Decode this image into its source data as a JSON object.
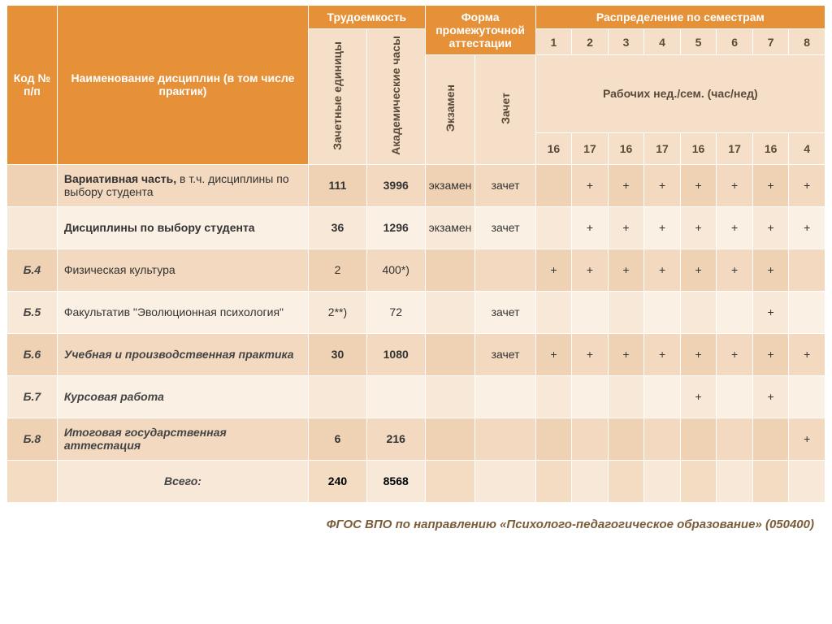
{
  "colors": {
    "header_bg": "#e69138",
    "sub_bg": "#f6dfc8",
    "stripe_even": "#f3d9bf",
    "stripe_odd": "#fbf0e4",
    "text_header": "#ffffff",
    "text_body": "#333333",
    "footer": "#7a5c3a",
    "border": "#ffffff"
  },
  "typography": {
    "font_family": "Arial, sans-serif",
    "header_fontsize": 14,
    "body_fontsize": 14,
    "footer_fontsize": 15
  },
  "header": {
    "code": "Код № п/п",
    "name": "Наименование дисциплин (в том числе практик)",
    "labor": "Трудоемкость",
    "form": "Форма промежуточной аттестации",
    "distribution": "Распределение по семестрам",
    "credit_units": "Зачетные единицы",
    "academic_hours": "Академические часы",
    "exam": "Экзамен",
    "zachet": "Зачет",
    "semesters": [
      "1",
      "2",
      "3",
      "4",
      "5",
      "6",
      "7",
      "8"
    ],
    "weeks_label": "Рабочих нед./сем. (час/нед)",
    "weeks": [
      "16",
      "17",
      "16",
      "17",
      "16",
      "17",
      "16",
      "4"
    ]
  },
  "rows": [
    {
      "code": "",
      "name_bold": "Вариативная часть,",
      "name_rest": " в т.ч. дисциплины по выбору студента",
      "name_style": "bold-partial",
      "units": "111",
      "hours": "3996",
      "exam": "экзамен",
      "zachet": "зачет",
      "sem": [
        "",
        "+",
        "+",
        "+",
        "+",
        "+",
        "+",
        "+"
      ]
    },
    {
      "code": "",
      "name": "Дисциплины по выбору студента",
      "name_style": "bold",
      "units": "36",
      "hours": "1296",
      "exam": "экзамен",
      "zachet": "зачет",
      "sem": [
        "",
        "+",
        "+",
        "+",
        "+",
        "+",
        "+",
        "+"
      ]
    },
    {
      "code": "Б.4",
      "name": "Физическая культура",
      "name_style": "norm",
      "units": "2",
      "hours": "400*)",
      "exam": "",
      "zachet": "",
      "sem": [
        "+",
        "+",
        "+",
        "+",
        "+",
        "+",
        "+",
        ""
      ]
    },
    {
      "code": "Б.5",
      "name": "Факультатив \"Эволюционная психология\"",
      "name_style": "norm",
      "units": "2**)",
      "hours": "72",
      "exam": "",
      "zachet": "зачет",
      "sem": [
        "",
        "",
        "",
        "",
        "",
        "",
        "+",
        ""
      ]
    },
    {
      "code": "Б.6",
      "name": "Учебная и производственная практика",
      "name_style": "italic",
      "units": "30",
      "hours": "1080",
      "exam": "",
      "zachet": "зачет",
      "sem": [
        "+",
        "+",
        "+",
        "+",
        "+",
        "+",
        "+",
        "+"
      ]
    },
    {
      "code": "Б.7",
      "name": "Курсовая работа",
      "name_style": "italic",
      "units": "",
      "hours": "",
      "exam": "",
      "zachet": "",
      "sem": [
        "",
        "",
        "",
        "",
        "+",
        "",
        "+",
        ""
      ]
    },
    {
      "code": "Б.8",
      "name": "Итоговая государственная аттестация",
      "name_style": "italic",
      "units": "6",
      "hours": "216",
      "exam": "",
      "zachet": "",
      "sem": [
        "",
        "",
        "",
        "",
        "",
        "",
        "",
        "+"
      ]
    }
  ],
  "total": {
    "label": "Всего:",
    "units": "240",
    "hours": "8568"
  },
  "footer": "ФГОС ВПО по направлению «Психолого-педагогическое образование» (050400)"
}
